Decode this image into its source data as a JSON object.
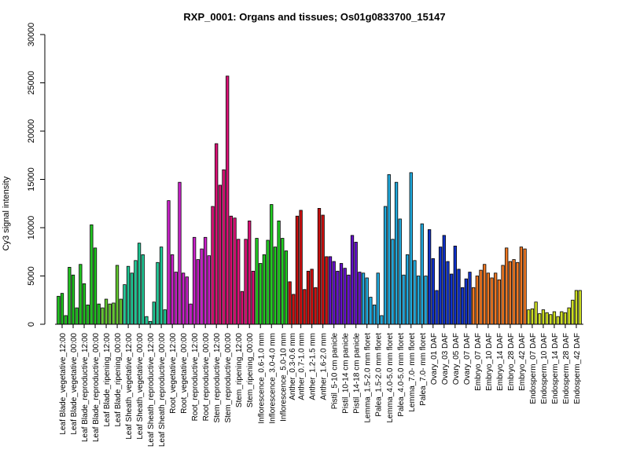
{
  "chart_data": {
    "type": "bar",
    "title": "RXP_0001: Organs and tissues; Os01g0833700_15147",
    "xlabel": "",
    "ylabel": "Cy3 signal intensity",
    "ylim": [
      0,
      30000
    ],
    "yticks": [
      0,
      5000,
      10000,
      15000,
      20000,
      25000,
      30000
    ],
    "grid": false,
    "legend": "none",
    "tick_labels": [
      "Leaf Blade_vegetative_12:00",
      "Leaf Blade_vegetative_00:00",
      "Leaf Blade_reproductive_12:00",
      "Leaf Blade_reproductive_00:00",
      "Leaf Blade_ripening_12:00",
      "Leaf Blade_ripening_00:00",
      "Leaf Sheath_vegetative_12:00",
      "Leaf Sheath_vegetative_00:00",
      "Leaf Sheath_reproductive_12:00",
      "Leaf Sheath_reproductive_00:00",
      "Root_vegetative_12:00",
      "Root_vegetative_00:00",
      "Root_reproductive_12:00",
      "Root_reproductive_00:00",
      "Stem_reproductive_12:00",
      "Stem_reproductive_00:00",
      "Stem_ripening_12:00",
      "Stem_ripening_00:00",
      "Inflorescence_0.6-1.0 mm",
      "Inflorescence_3.0-4.0 mm",
      "Inflorescence_5.0-10 mm",
      "Anther_0.3-0.6 mm",
      "Anther_0.7-1.0 mm",
      "Anther_1.2-1.5 mm",
      "Anther_1.6-2.0 mm",
      "Pistil_5-10 cm panicle",
      "Pistil_10-14 cm panicle",
      "Pistil_14-18 cm panicle",
      "Lemma_1.5-2.0 mm floret",
      "Palea_1.5-2.0 mm floret",
      "Lemma_4.0-5.0 mm floret",
      "Palea_4.0-5.0 mm floret",
      "Lemma_7.0- mm floret",
      "Palea_7.0- mm floret",
      "Ovary_01 DAF",
      "Ovary_03 DAF",
      "Ovary_05 DAF",
      "Ovary_07 DAF",
      "Embryo_07 DAF",
      "Embryo_10 DAF",
      "Embryo_14 DAF",
      "Embryo_28 DAF",
      "Embryo_42 DAF",
      "Endosperm_07 DAF",
      "Endosperm_10 DAF",
      "Endosperm_14 DAF",
      "Endosperm_28 DAF",
      "Endosperm_42 DAF"
    ],
    "groups": [
      {
        "color": "#22c422",
        "values": [
          2900,
          3200,
          900
        ]
      },
      {
        "color": "#22c422",
        "values": [
          5900,
          5100,
          1700
        ]
      },
      {
        "color": "#22c422",
        "values": [
          6200,
          4200,
          2000
        ]
      },
      {
        "color": "#22c422",
        "values": [
          10300,
          7900,
          2100
        ]
      },
      {
        "color": "#66cc33",
        "values": [
          1700,
          2600,
          2100
        ]
      },
      {
        "color": "#66cc33",
        "values": [
          2200,
          6100,
          2600
        ]
      },
      {
        "color": "#22cc99",
        "values": [
          4100,
          6000,
          5300
        ]
      },
      {
        "color": "#22cc99",
        "values": [
          6600,
          8400,
          7200
        ]
      },
      {
        "color": "#22cc99",
        "values": [
          800,
          300,
          2300
        ]
      },
      {
        "color": "#22cc99",
        "values": [
          6400,
          8000,
          1500
        ]
      },
      {
        "color": "#cc22cc",
        "values": [
          12800,
          7200,
          5400
        ]
      },
      {
        "color": "#cc22cc",
        "values": [
          14700,
          5300,
          4900
        ]
      },
      {
        "color": "#cc22cc",
        "values": [
          2100,
          9000,
          6700
        ]
      },
      {
        "color": "#cc22cc",
        "values": [
          7800,
          9000,
          7100
        ]
      },
      {
        "color": "#dd1177",
        "values": [
          12200,
          18700,
          14400
        ]
      },
      {
        "color": "#dd1177",
        "values": [
          16000,
          25700,
          11200
        ]
      },
      {
        "color": "#dd1177",
        "values": [
          11000,
          8800,
          3400
        ]
      },
      {
        "color": "#dd1177",
        "values": [
          8800,
          10700,
          5500
        ]
      },
      {
        "color": "#22cc22",
        "values": [
          8900,
          6300,
          7200
        ]
      },
      {
        "color": "#22cc22",
        "values": [
          8700,
          12400,
          8000
        ]
      },
      {
        "color": "#22cc22",
        "values": [
          10700,
          8900,
          7600
        ]
      },
      {
        "color": "#cc1111",
        "values": [
          4400,
          3100
        ]
      },
      {
        "color": "#cc1111",
        "values": [
          11200,
          11800,
          3600
        ]
      },
      {
        "color": "#cc1111",
        "values": [
          5500,
          5700,
          3800
        ]
      },
      {
        "color": "#cc1111",
        "values": [
          12000,
          11300,
          7000
        ]
      },
      {
        "color": "#6611cc",
        "values": [
          7000,
          6500,
          5500
        ]
      },
      {
        "color": "#6611cc",
        "values": [
          6300,
          5800,
          5100
        ]
      },
      {
        "color": "#6611cc",
        "values": [
          9200,
          8500,
          5400
        ]
      },
      {
        "color": "#22aadd",
        "values": [
          5300,
          4800,
          2800
        ]
      },
      {
        "color": "#22aadd",
        "values": [
          2000,
          5300,
          900
        ]
      },
      {
        "color": "#22aadd",
        "values": [
          12200,
          15500,
          8800
        ]
      },
      {
        "color": "#22aadd",
        "values": [
          14700,
          10900,
          5100
        ]
      },
      {
        "color": "#22aadd",
        "values": [
          7200,
          15700,
          6600
        ]
      },
      {
        "color": "#22aadd",
        "values": [
          5000,
          10400,
          5000
        ]
      },
      {
        "color": "#1133cc",
        "values": [
          9800,
          6800,
          3500
        ]
      },
      {
        "color": "#1133cc",
        "values": [
          8000,
          9200,
          6500
        ]
      },
      {
        "color": "#1133cc",
        "values": [
          5200,
          8100,
          5700
        ]
      },
      {
        "color": "#1133cc",
        "values": [
          3800,
          4700,
          5400
        ]
      },
      {
        "color": "#ee7722",
        "values": [
          3800,
          5000,
          5600
        ]
      },
      {
        "color": "#ee7722",
        "values": [
          6200,
          5300,
          4800
        ]
      },
      {
        "color": "#ee7722",
        "values": [
          5300,
          4600,
          6100
        ]
      },
      {
        "color": "#ee7722",
        "values": [
          7900,
          6500,
          6700
        ]
      },
      {
        "color": "#ee7722",
        "values": [
          6400,
          8000,
          7800
        ]
      },
      {
        "color": "#ccdd22",
        "values": [
          1500,
          1600,
          2300
        ]
      },
      {
        "color": "#ccdd22",
        "values": [
          1100,
          1500,
          1200
        ]
      },
      {
        "color": "#ccdd22",
        "values": [
          1000,
          1300,
          800
        ]
      },
      {
        "color": "#ccdd22",
        "values": [
          1300,
          1200,
          1700
        ]
      },
      {
        "color": "#ccdd22",
        "values": [
          2500,
          3500,
          3500
        ]
      }
    ]
  }
}
